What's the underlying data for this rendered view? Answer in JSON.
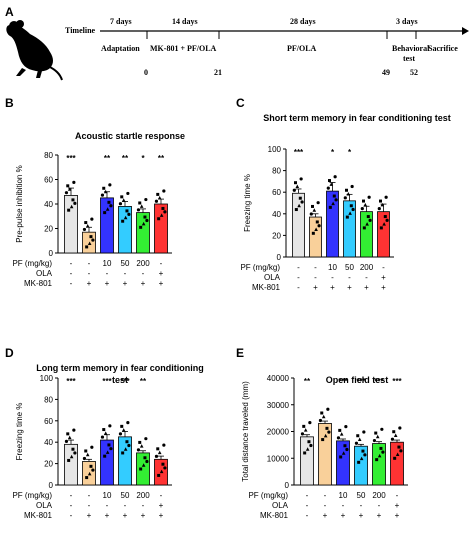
{
  "panels": {
    "A": "A",
    "B": "B",
    "C": "C",
    "D": "D",
    "E": "E"
  },
  "timeline": {
    "label": "Timeline",
    "durations": [
      "7  days",
      "14 days",
      "28 days",
      "3 days"
    ],
    "phases": [
      "Adaptation",
      "MK-801 + PF/OLA",
      "PF/OLA",
      "Behavioral test",
      "Sacrifice"
    ],
    "days": [
      "0",
      "21",
      "49",
      "52"
    ]
  },
  "conditions": {
    "row_labels": [
      "PF (mg/kg)",
      "OLA",
      "MK-801"
    ],
    "pf": [
      "-",
      "-",
      "10",
      "50",
      "200",
      "-"
    ],
    "ola": [
      "-",
      "-",
      "-",
      "-",
      "-",
      "+"
    ],
    "mk801": [
      "-",
      "+",
      "+",
      "+",
      "+",
      "+"
    ]
  },
  "colors": {
    "bars": [
      "#e6e6e6",
      "#f9d09a",
      "#3333ff",
      "#33ccff",
      "#33ee33",
      "#ff3333"
    ]
  },
  "chart_data": [
    {
      "id": "B",
      "type": "bar",
      "title": "Acoustic startle response",
      "ylabel": "Pre-pulse inhibition %",
      "ylim": [
        0,
        80
      ],
      "yticks": [
        "0",
        "20",
        "40",
        "60",
        "80"
      ],
      "values": [
        47,
        17,
        45,
        38,
        33,
        40
      ],
      "errors": [
        6,
        4,
        5,
        4,
        3,
        4
      ],
      "significance": [
        "***",
        "",
        "**",
        "**",
        "*",
        "**"
      ]
    },
    {
      "id": "C",
      "type": "bar",
      "title": "Short term memory in fear conditioning test",
      "ylabel": "Freezing time %",
      "ylim": [
        0,
        100
      ],
      "yticks": [
        "0",
        "20",
        "40",
        "60",
        "80",
        "100"
      ],
      "values": [
        59,
        37,
        61,
        52,
        42,
        42
      ],
      "errors": [
        4,
        3,
        8,
        6,
        5,
        7
      ],
      "significance": [
        "***",
        "",
        "*",
        "*",
        "",
        ""
      ]
    },
    {
      "id": "D",
      "type": "bar",
      "title": "Long term memory in fear conditioning test",
      "ylabel": "Freezing time %",
      "ylim": [
        0,
        100
      ],
      "yticks": [
        "0",
        "20",
        "40",
        "60",
        "80",
        "100"
      ],
      "values": [
        38,
        22,
        42,
        45,
        30,
        24
      ],
      "errors": [
        4,
        2,
        5,
        5,
        2,
        3
      ],
      "significance": [
        "***",
        "",
        "***",
        "***",
        "**",
        ""
      ]
    },
    {
      "id": "E",
      "type": "bar",
      "title": "Open field test",
      "ylabel": "Total distance traveled (mm)",
      "ylim": [
        0,
        40000
      ],
      "yticks": [
        "0",
        "10000",
        "20000",
        "30000",
        "40000"
      ],
      "values": [
        18000,
        23000,
        16500,
        14500,
        15500,
        16000
      ],
      "errors": [
        800,
        900,
        700,
        700,
        700,
        800
      ],
      "significance": [
        "**",
        "",
        "***",
        "***",
        "***",
        "***"
      ]
    }
  ]
}
